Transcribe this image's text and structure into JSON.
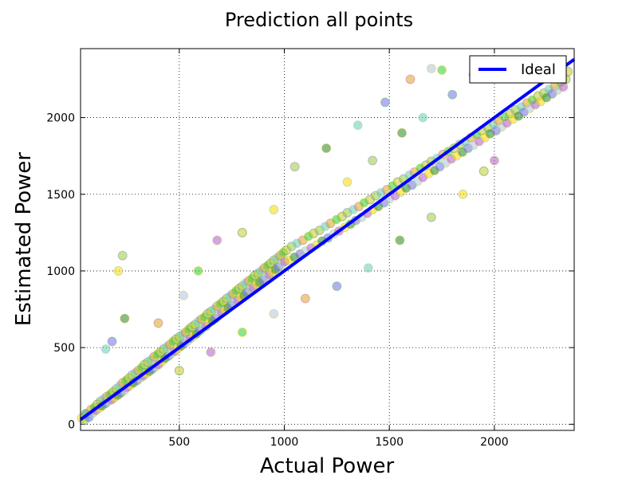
{
  "chart_data": {
    "type": "scatter",
    "title": "Prediction all points",
    "xlabel": "Actual Power",
    "ylabel": "Estimated Power",
    "xlim": [
      30,
      2380
    ],
    "ylim": [
      -40,
      2450
    ],
    "xticks": [
      500,
      1000,
      1500,
      2000
    ],
    "yticks": [
      0,
      500,
      1000,
      1500,
      2000
    ],
    "grid": true,
    "legend": {
      "position": "top-right",
      "entries": [
        "Ideal"
      ]
    },
    "ideal_line": {
      "name": "Ideal",
      "x": [
        30,
        2380
      ],
      "y": [
        30,
        2380
      ],
      "color": "#0000ff"
    },
    "point_colors": [
      "#ffd700",
      "#9acd32",
      "#228b22",
      "#66cdaa",
      "#7b68ee",
      "#daa520",
      "#b0c4de",
      "#32cd32",
      "#ba55d3",
      "#c8c832"
    ],
    "points": [
      [
        35,
        40
      ],
      [
        48,
        25
      ],
      [
        55,
        70
      ],
      [
        62,
        58
      ],
      [
        70,
        45
      ],
      [
        80,
        95
      ],
      [
        88,
        72
      ],
      [
        95,
        110
      ],
      [
        102,
        90
      ],
      [
        110,
        130
      ],
      [
        118,
        105
      ],
      [
        125,
        150
      ],
      [
        132,
        120
      ],
      [
        140,
        165
      ],
      [
        148,
        135
      ],
      [
        155,
        180
      ],
      [
        162,
        150
      ],
      [
        170,
        195
      ],
      [
        178,
        160
      ],
      [
        185,
        210
      ],
      [
        192,
        175
      ],
      [
        200,
        230
      ],
      [
        208,
        190
      ],
      [
        215,
        250
      ],
      [
        222,
        205
      ],
      [
        230,
        270
      ],
      [
        238,
        220
      ],
      [
        245,
        285
      ],
      [
        252,
        240
      ],
      [
        260,
        300
      ],
      [
        268,
        255
      ],
      [
        275,
        320
      ],
      [
        282,
        270
      ],
      [
        290,
        335
      ],
      [
        298,
        285
      ],
      [
        305,
        350
      ],
      [
        312,
        300
      ],
      [
        320,
        370
      ],
      [
        328,
        315
      ],
      [
        335,
        390
      ],
      [
        342,
        330
      ],
      [
        350,
        405
      ],
      [
        358,
        345
      ],
      [
        365,
        420
      ],
      [
        372,
        360
      ],
      [
        380,
        440
      ],
      [
        388,
        375
      ],
      [
        395,
        455
      ],
      [
        402,
        390
      ],
      [
        410,
        470
      ],
      [
        418,
        410
      ],
      [
        425,
        490
      ],
      [
        432,
        430
      ],
      [
        440,
        505
      ],
      [
        448,
        445
      ],
      [
        455,
        520
      ],
      [
        462,
        460
      ],
      [
        470,
        540
      ],
      [
        478,
        475
      ],
      [
        485,
        555
      ],
      [
        492,
        490
      ],
      [
        500,
        570
      ],
      [
        508,
        510
      ],
      [
        515,
        585
      ],
      [
        522,
        525
      ],
      [
        530,
        600
      ],
      [
        538,
        540
      ],
      [
        545,
        620
      ],
      [
        552,
        560
      ],
      [
        560,
        635
      ],
      [
        568,
        575
      ],
      [
        575,
        650
      ],
      [
        582,
        590
      ],
      [
        590,
        670
      ],
      [
        598,
        610
      ],
      [
        605,
        685
      ],
      [
        612,
        625
      ],
      [
        620,
        700
      ],
      [
        628,
        640
      ],
      [
        635,
        720
      ],
      [
        642,
        660
      ],
      [
        650,
        735
      ],
      [
        658,
        675
      ],
      [
        665,
        750
      ],
      [
        672,
        690
      ],
      [
        680,
        770
      ],
      [
        688,
        710
      ],
      [
        695,
        785
      ],
      [
        702,
        725
      ],
      [
        710,
        800
      ],
      [
        718,
        740
      ],
      [
        725,
        820
      ],
      [
        732,
        760
      ],
      [
        740,
        835
      ],
      [
        748,
        775
      ],
      [
        755,
        850
      ],
      [
        762,
        790
      ],
      [
        770,
        870
      ],
      [
        778,
        810
      ],
      [
        785,
        885
      ],
      [
        792,
        825
      ],
      [
        800,
        900
      ],
      [
        808,
        840
      ],
      [
        815,
        920
      ],
      [
        822,
        860
      ],
      [
        830,
        935
      ],
      [
        838,
        875
      ],
      [
        845,
        950
      ],
      [
        852,
        890
      ],
      [
        860,
        970
      ],
      [
        868,
        910
      ],
      [
        875,
        985
      ],
      [
        882,
        925
      ],
      [
        890,
        1000
      ],
      [
        898,
        940
      ],
      [
        905,
        1020
      ],
      [
        912,
        960
      ],
      [
        920,
        1035
      ],
      [
        928,
        975
      ],
      [
        935,
        1050
      ],
      [
        942,
        990
      ],
      [
        950,
        1070
      ],
      [
        958,
        1010
      ],
      [
        965,
        1085
      ],
      [
        972,
        1025
      ],
      [
        980,
        1100
      ],
      [
        988,
        1040
      ],
      [
        995,
        1120
      ],
      [
        1002,
        1060
      ],
      [
        1010,
        1135
      ],
      [
        1020,
        1070
      ],
      [
        1035,
        1160
      ],
      [
        1048,
        1090
      ],
      [
        1060,
        1180
      ],
      [
        1075,
        1110
      ],
      [
        1088,
        1200
      ],
      [
        1100,
        1130
      ],
      [
        1115,
        1225
      ],
      [
        1128,
        1150
      ],
      [
        1140,
        1245
      ],
      [
        1155,
        1170
      ],
      [
        1168,
        1265
      ],
      [
        1180,
        1195
      ],
      [
        1195,
        1290
      ],
      [
        1208,
        1215
      ],
      [
        1220,
        1310
      ],
      [
        1235,
        1240
      ],
      [
        1248,
        1335
      ],
      [
        1260,
        1260
      ],
      [
        1275,
        1355
      ],
      [
        1288,
        1285
      ],
      [
        1300,
        1380
      ],
      [
        1315,
        1305
      ],
      [
        1328,
        1400
      ],
      [
        1340,
        1330
      ],
      [
        1355,
        1420
      ],
      [
        1368,
        1350
      ],
      [
        1380,
        1445
      ],
      [
        1395,
        1375
      ],
      [
        1408,
        1465
      ],
      [
        1420,
        1400
      ],
      [
        1435,
        1490
      ],
      [
        1448,
        1420
      ],
      [
        1460,
        1510
      ],
      [
        1475,
        1445
      ],
      [
        1488,
        1530
      ],
      [
        1500,
        1470
      ],
      [
        1515,
        1555
      ],
      [
        1528,
        1490
      ],
      [
        1540,
        1580
      ],
      [
        1555,
        1515
      ],
      [
        1568,
        1600
      ],
      [
        1580,
        1540
      ],
      [
        1595,
        1625
      ],
      [
        1608,
        1560
      ],
      [
        1620,
        1645
      ],
      [
        1635,
        1585
      ],
      [
        1648,
        1670
      ],
      [
        1660,
        1610
      ],
      [
        1675,
        1690
      ],
      [
        1688,
        1635
      ],
      [
        1700,
        1715
      ],
      [
        1715,
        1655
      ],
      [
        1728,
        1735
      ],
      [
        1740,
        1680
      ],
      [
        1755,
        1760
      ],
      [
        1768,
        1705
      ],
      [
        1780,
        1780
      ],
      [
        1795,
        1730
      ],
      [
        1808,
        1800
      ],
      [
        1820,
        1750
      ],
      [
        1835,
        1825
      ],
      [
        1848,
        1775
      ],
      [
        1860,
        1845
      ],
      [
        1875,
        1800
      ],
      [
        1888,
        1870
      ],
      [
        1900,
        1820
      ],
      [
        1915,
        1890
      ],
      [
        1928,
        1845
      ],
      [
        1940,
        1915
      ],
      [
        1955,
        1870
      ],
      [
        1968,
        1935
      ],
      [
        1980,
        1895
      ],
      [
        1995,
        1960
      ],
      [
        2008,
        1915
      ],
      [
        2020,
        1980
      ],
      [
        2035,
        1940
      ],
      [
        2048,
        2005
      ],
      [
        2060,
        1965
      ],
      [
        2075,
        2025
      ],
      [
        2088,
        1990
      ],
      [
        2100,
        2050
      ],
      [
        2115,
        2010
      ],
      [
        2128,
        2070
      ],
      [
        2140,
        2035
      ],
      [
        2155,
        2095
      ],
      [
        2168,
        2060
      ],
      [
        2180,
        2115
      ],
      [
        2195,
        2085
      ],
      [
        2208,
        2140
      ],
      [
        2220,
        2105
      ],
      [
        2235,
        2160
      ],
      [
        2248,
        2130
      ],
      [
        2260,
        2185
      ],
      [
        2275,
        2155
      ],
      [
        2288,
        2205
      ],
      [
        2300,
        2180
      ],
      [
        2315,
        2230
      ],
      [
        2328,
        2200
      ],
      [
        2340,
        2250
      ],
      [
        210,
        1000
      ],
      [
        230,
        1100
      ],
      [
        240,
        690
      ],
      [
        150,
        490
      ],
      [
        180,
        540
      ],
      [
        400,
        660
      ],
      [
        520,
        840
      ],
      [
        590,
        1000
      ],
      [
        680,
        1200
      ],
      [
        800,
        1250
      ],
      [
        950,
        1400
      ],
      [
        1050,
        1680
      ],
      [
        1200,
        1800
      ],
      [
        1350,
        1950
      ],
      [
        1480,
        2100
      ],
      [
        1600,
        2250
      ],
      [
        1700,
        2320
      ],
      [
        1750,
        2310
      ],
      [
        2000,
        1720
      ],
      [
        1950,
        1650
      ],
      [
        1850,
        1500
      ],
      [
        1700,
        1350
      ],
      [
        1550,
        1200
      ],
      [
        1400,
        1020
      ],
      [
        1250,
        900
      ],
      [
        1100,
        820
      ],
      [
        950,
        720
      ],
      [
        800,
        600
      ],
      [
        650,
        470
      ],
      [
        500,
        350
      ],
      [
        1300,
        1580
      ],
      [
        1420,
        1720
      ],
      [
        1560,
        1900
      ],
      [
        1660,
        2000
      ],
      [
        1800,
        2150
      ],
      [
        1900,
        2280
      ],
      [
        2050,
        2300
      ],
      [
        2200,
        2330
      ],
      [
        2300,
        2350
      ],
      [
        2350,
        2300
      ]
    ]
  }
}
